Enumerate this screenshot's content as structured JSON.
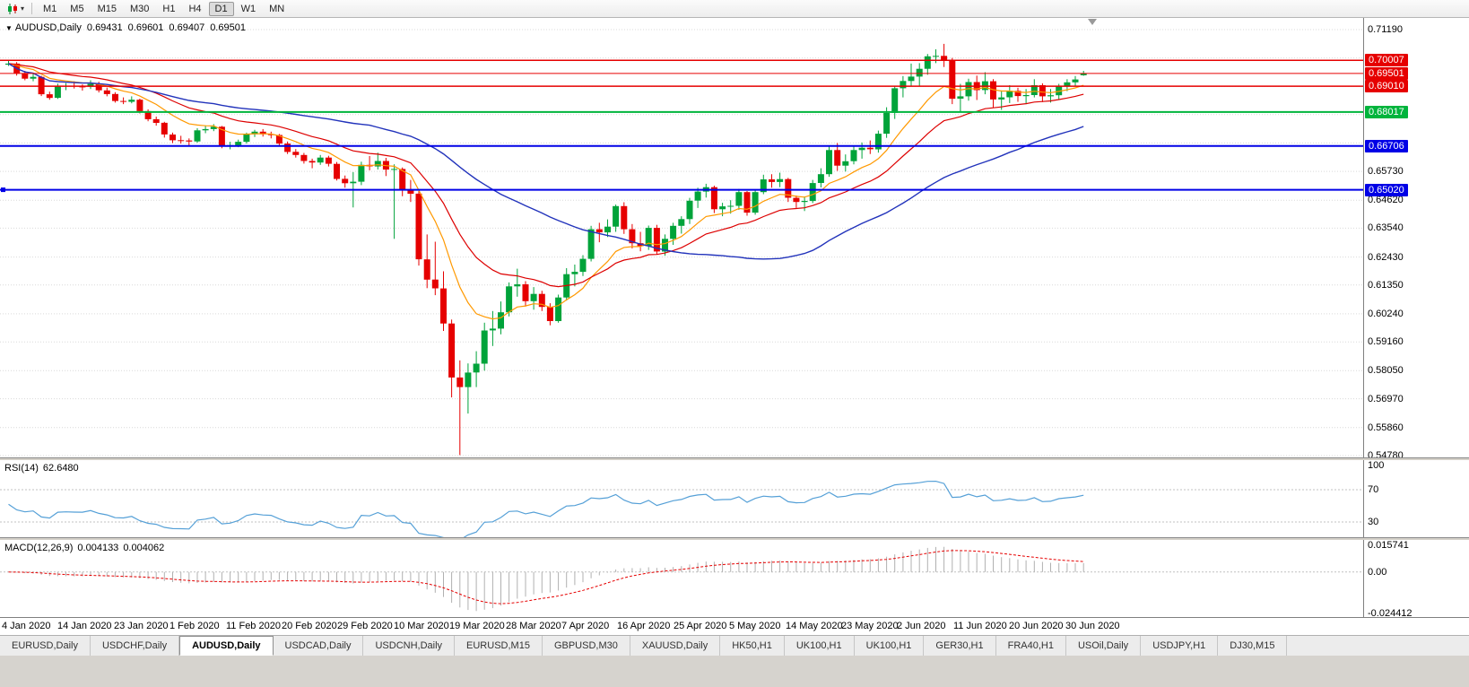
{
  "toolbar": {
    "timeframes": [
      "M1",
      "M5",
      "M15",
      "M30",
      "H1",
      "H4",
      "D1",
      "W1",
      "MN"
    ],
    "active_timeframe": "D1"
  },
  "chart": {
    "type": "candlestick",
    "symbol_period": "AUDUSD,Daily",
    "ohlc": {
      "open": "0.69431",
      "high": "0.69601",
      "low": "0.69407",
      "close": "0.69501"
    },
    "colors": {
      "up": "#00a33a",
      "down": "#e60000",
      "grid": "#d9d9d9",
      "background": "#ffffff"
    },
    "price_axis": {
      "max": 0.7164,
      "min": 0.5471,
      "ticks": [
        "0.71190",
        "0.65730",
        "0.64620",
        "0.63540",
        "0.62430",
        "0.61350",
        "0.60240",
        "0.59160",
        "0.58050",
        "0.56970",
        "0.55860",
        "0.54780"
      ],
      "grid": [
        0.7119,
        0.70098,
        0.69006,
        0.67914,
        0.66822,
        0.6573,
        0.6462,
        0.6354,
        0.6243,
        0.6135,
        0.6024,
        0.5916,
        0.5805,
        0.5697,
        0.5586,
        0.5478
      ]
    },
    "hlines": [
      {
        "value": 0.70007,
        "label": "0.70007",
        "color": "#e60000",
        "width": 1.5,
        "handle": false
      },
      {
        "value": 0.6901,
        "label": "0.69010",
        "color": "#e60000",
        "width": 1.5,
        "handle": false
      },
      {
        "value": 0.68017,
        "label": "0.68017",
        "color": "#00b43c",
        "width": 2,
        "handle": false
      },
      {
        "value": 0.66706,
        "label": "0.66706",
        "color": "#0000e6",
        "width": 2,
        "handle": false
      },
      {
        "value": 0.6502,
        "label": "0.65020",
        "color": "#0000e6",
        "width": 2,
        "handle": true
      }
    ],
    "bid": {
      "value": 0.69501,
      "label": "0.69501",
      "color": "#e60000"
    },
    "moving_averages": [
      {
        "name": "ma-fast",
        "period": 10,
        "method": "ema",
        "color": "#ff9900",
        "width": 1.2
      },
      {
        "name": "ma-mid",
        "period": 21,
        "method": "ema",
        "color": "#dd0000",
        "width": 1.2
      },
      {
        "name": "ma-slow",
        "period": 45,
        "method": "sma",
        "color": "#2233bb",
        "width": 1.4
      }
    ],
    "date_labels": [
      "4 Jan 2020",
      "14 Jan 2020",
      "23 Jan 2020",
      "1 Feb 2020",
      "11 Feb 2020",
      "20 Feb 2020",
      "29 Feb 2020",
      "10 Mar 2020",
      "19 Mar 2020",
      "28 Mar 2020",
      "7 Apr 2020",
      "16 Apr 2020",
      "25 Apr 2020",
      "5 May 2020",
      "14 May 2020",
      "23 May 2020",
      "2 Jun 2020",
      "11 Jun 2020",
      "20 Jun 2020",
      "30 Jun 2020"
    ],
    "candles": [
      [
        0.6984,
        0.7,
        0.6979,
        0.6988
      ],
      [
        0.6988,
        0.6994,
        0.6942,
        0.695
      ],
      [
        0.695,
        0.696,
        0.6924,
        0.693
      ],
      [
        0.693,
        0.6949,
        0.692,
        0.6937
      ],
      [
        0.6937,
        0.6941,
        0.6863,
        0.687
      ],
      [
        0.687,
        0.688,
        0.6849,
        0.6856
      ],
      [
        0.6856,
        0.6911,
        0.6852,
        0.69
      ],
      [
        0.69,
        0.6913,
        0.6886,
        0.6903
      ],
      [
        0.6903,
        0.692,
        0.6892,
        0.69
      ],
      [
        0.69,
        0.6908,
        0.6884,
        0.6899
      ],
      [
        0.6899,
        0.6924,
        0.689,
        0.691
      ],
      [
        0.691,
        0.6918,
        0.6877,
        0.6885
      ],
      [
        0.6885,
        0.6896,
        0.6862,
        0.6871
      ],
      [
        0.6871,
        0.6878,
        0.6838,
        0.6844
      ],
      [
        0.6844,
        0.6858,
        0.6832,
        0.6841
      ],
      [
        0.6841,
        0.6862,
        0.6835,
        0.6849
      ],
      [
        0.6849,
        0.6853,
        0.6796,
        0.6805
      ],
      [
        0.6805,
        0.6812,
        0.6766,
        0.6774
      ],
      [
        0.6774,
        0.6784,
        0.6749,
        0.676
      ],
      [
        0.676,
        0.6764,
        0.6703,
        0.6715
      ],
      [
        0.6715,
        0.6722,
        0.6682,
        0.6693
      ],
      [
        0.6693,
        0.671,
        0.668,
        0.6692
      ],
      [
        0.6692,
        0.67,
        0.667,
        0.6688
      ],
      [
        0.6688,
        0.6739,
        0.6683,
        0.6731
      ],
      [
        0.6731,
        0.675,
        0.672,
        0.6736
      ],
      [
        0.6736,
        0.6755,
        0.6728,
        0.6745
      ],
      [
        0.6745,
        0.6748,
        0.6662,
        0.667
      ],
      [
        0.667,
        0.6687,
        0.6658,
        0.6674
      ],
      [
        0.6674,
        0.6695,
        0.6666,
        0.6687
      ],
      [
        0.6687,
        0.6722,
        0.668,
        0.6716
      ],
      [
        0.6716,
        0.6733,
        0.6705,
        0.6726
      ],
      [
        0.6726,
        0.6736,
        0.6707,
        0.6716
      ],
      [
        0.6716,
        0.6726,
        0.67,
        0.6713
      ],
      [
        0.6713,
        0.6717,
        0.6671,
        0.668
      ],
      [
        0.668,
        0.6688,
        0.664,
        0.6648
      ],
      [
        0.6648,
        0.6659,
        0.6626,
        0.6636
      ],
      [
        0.6636,
        0.6644,
        0.6603,
        0.6613
      ],
      [
        0.6613,
        0.6622,
        0.6585,
        0.6607
      ],
      [
        0.6607,
        0.6636,
        0.6598,
        0.6626
      ],
      [
        0.6626,
        0.6633,
        0.6592,
        0.6602
      ],
      [
        0.6602,
        0.6609,
        0.6538,
        0.6544
      ],
      [
        0.6544,
        0.6557,
        0.651,
        0.6527
      ],
      [
        0.6527,
        0.657,
        0.6434,
        0.6533
      ],
      [
        0.6533,
        0.661,
        0.652,
        0.6598
      ],
      [
        0.6598,
        0.6632,
        0.6577,
        0.6592
      ],
      [
        0.6592,
        0.6645,
        0.658,
        0.6613
      ],
      [
        0.6613,
        0.6625,
        0.6555,
        0.658
      ],
      [
        0.658,
        0.66,
        0.6313,
        0.6582
      ],
      [
        0.6582,
        0.6588,
        0.6477,
        0.6499
      ],
      [
        0.6499,
        0.654,
        0.6455,
        0.6487
      ],
      [
        0.6487,
        0.6497,
        0.621,
        0.6234
      ],
      [
        0.6234,
        0.633,
        0.6123,
        0.6156
      ],
      [
        0.6156,
        0.6302,
        0.6096,
        0.6122
      ],
      [
        0.6122,
        0.6188,
        0.5958,
        0.5987
      ],
      [
        0.5987,
        0.6002,
        0.5702,
        0.5779
      ],
      [
        0.5779,
        0.5845,
        0.548,
        0.5742
      ],
      [
        0.5742,
        0.5833,
        0.564,
        0.5798
      ],
      [
        0.5798,
        0.588,
        0.5742,
        0.5832
      ],
      [
        0.5832,
        0.599,
        0.5805,
        0.596
      ],
      [
        0.596,
        0.6035,
        0.59,
        0.5967
      ],
      [
        0.5967,
        0.6072,
        0.5945,
        0.603
      ],
      [
        0.603,
        0.6145,
        0.6014,
        0.613
      ],
      [
        0.613,
        0.6198,
        0.609,
        0.6138
      ],
      [
        0.6138,
        0.615,
        0.6052,
        0.6073
      ],
      [
        0.6073,
        0.6127,
        0.604,
        0.6101
      ],
      [
        0.6101,
        0.6113,
        0.6035,
        0.6051
      ],
      [
        0.6051,
        0.6065,
        0.598,
        0.5996
      ],
      [
        0.5996,
        0.6098,
        0.599,
        0.6087
      ],
      [
        0.6087,
        0.62,
        0.6075,
        0.6177
      ],
      [
        0.6177,
        0.6214,
        0.613,
        0.6186
      ],
      [
        0.6186,
        0.625,
        0.617,
        0.6236
      ],
      [
        0.6236,
        0.6363,
        0.6226,
        0.635
      ],
      [
        0.635,
        0.6375,
        0.63,
        0.6338
      ],
      [
        0.6338,
        0.6388,
        0.632,
        0.636
      ],
      [
        0.636,
        0.6445,
        0.634,
        0.6439
      ],
      [
        0.6439,
        0.6454,
        0.6332,
        0.635
      ],
      [
        0.635,
        0.637,
        0.6276,
        0.6296
      ],
      [
        0.6296,
        0.634,
        0.6265,
        0.6285
      ],
      [
        0.6285,
        0.6364,
        0.627,
        0.6355
      ],
      [
        0.6355,
        0.6367,
        0.6253,
        0.6264
      ],
      [
        0.6264,
        0.633,
        0.6248,
        0.6313
      ],
      [
        0.6313,
        0.6375,
        0.629,
        0.6363
      ],
      [
        0.6363,
        0.64,
        0.6333,
        0.6389
      ],
      [
        0.6389,
        0.6471,
        0.637,
        0.646
      ],
      [
        0.646,
        0.651,
        0.6432,
        0.6495
      ],
      [
        0.6495,
        0.6525,
        0.6472,
        0.6512
      ],
      [
        0.6512,
        0.6518,
        0.6412,
        0.6427
      ],
      [
        0.6427,
        0.6452,
        0.64,
        0.6438
      ],
      [
        0.6438,
        0.6462,
        0.641,
        0.644
      ],
      [
        0.644,
        0.6505,
        0.6425,
        0.6493
      ],
      [
        0.6493,
        0.6497,
        0.6402,
        0.6414
      ],
      [
        0.6414,
        0.65,
        0.6406,
        0.6493
      ],
      [
        0.6493,
        0.656,
        0.6485,
        0.6542
      ],
      [
        0.6542,
        0.6562,
        0.651,
        0.6532
      ],
      [
        0.6532,
        0.6568,
        0.6512,
        0.6543
      ],
      [
        0.6543,
        0.6548,
        0.6455,
        0.6471
      ],
      [
        0.6471,
        0.648,
        0.6432,
        0.6455
      ],
      [
        0.6455,
        0.6476,
        0.642,
        0.6459
      ],
      [
        0.6459,
        0.654,
        0.6451,
        0.6528
      ],
      [
        0.6528,
        0.6585,
        0.6511,
        0.6562
      ],
      [
        0.6562,
        0.6672,
        0.6552,
        0.6655
      ],
      [
        0.6655,
        0.6682,
        0.6575,
        0.6595
      ],
      [
        0.6595,
        0.6638,
        0.6572,
        0.6612
      ],
      [
        0.6612,
        0.6672,
        0.66,
        0.6655
      ],
      [
        0.6655,
        0.6684,
        0.6622,
        0.6664
      ],
      [
        0.6664,
        0.6692,
        0.664,
        0.6658
      ],
      [
        0.6658,
        0.673,
        0.6645,
        0.6718
      ],
      [
        0.6718,
        0.682,
        0.6702,
        0.6798
      ],
      [
        0.6798,
        0.69,
        0.6775,
        0.6893
      ],
      [
        0.6893,
        0.694,
        0.6858,
        0.6921
      ],
      [
        0.6921,
        0.6988,
        0.69,
        0.6938
      ],
      [
        0.6938,
        0.699,
        0.6902,
        0.6968
      ],
      [
        0.6968,
        0.7025,
        0.6945,
        0.7016
      ],
      [
        0.7016,
        0.7043,
        0.699,
        0.7018
      ],
      [
        0.7018,
        0.7064,
        0.6975,
        0.6999
      ],
      [
        0.6999,
        0.701,
        0.6832,
        0.6853
      ],
      [
        0.6853,
        0.691,
        0.68,
        0.6862
      ],
      [
        0.6862,
        0.693,
        0.6845,
        0.6917
      ],
      [
        0.6917,
        0.6942,
        0.6848,
        0.6886
      ],
      [
        0.6886,
        0.6955,
        0.687,
        0.692
      ],
      [
        0.692,
        0.6928,
        0.6818,
        0.685
      ],
      [
        0.685,
        0.6885,
        0.681,
        0.6858
      ],
      [
        0.6858,
        0.6905,
        0.6836,
        0.6883
      ],
      [
        0.6883,
        0.6895,
        0.6841,
        0.6863
      ],
      [
        0.6863,
        0.689,
        0.6832,
        0.6867
      ],
      [
        0.6867,
        0.6928,
        0.6858,
        0.6905
      ],
      [
        0.6905,
        0.6912,
        0.684,
        0.6862
      ],
      [
        0.6862,
        0.689,
        0.6838,
        0.6866
      ],
      [
        0.6866,
        0.691,
        0.685,
        0.6903
      ],
      [
        0.6903,
        0.6928,
        0.6882,
        0.6916
      ],
      [
        0.6916,
        0.694,
        0.69,
        0.6927
      ],
      [
        0.6943,
        0.696,
        0.6941,
        0.695
      ]
    ]
  },
  "rsi": {
    "name": "RSI(14)",
    "value": "62.6480",
    "period": 14,
    "color": "#55a0d7",
    "levels": [
      {
        "label": "100",
        "value": 100,
        "line": false
      },
      {
        "label": "70",
        "value": 70,
        "line": true
      },
      {
        "label": "30",
        "value": 30,
        "line": true
      }
    ]
  },
  "macd": {
    "name": "MACD(12,26,9)",
    "macd_value": "0.004133",
    "signal_value": "0.004062",
    "fast": 12,
    "slow": 26,
    "signal": 9,
    "histogram_color": "#b0b0b0",
    "signal_color": "#e60000",
    "axis": {
      "max": 0.015741,
      "min": -0.024412,
      "labels": [
        {
          "label": "0.015741",
          "value": 0.015741
        },
        {
          "label": "0.00",
          "value": 0
        },
        {
          "label": "-0.024412",
          "value": -0.024412
        }
      ]
    }
  },
  "tabs": {
    "items": [
      "EURUSD,Daily",
      "USDCHF,Daily",
      "AUDUSD,Daily",
      "USDCAD,Daily",
      "USDCNH,Daily",
      "EURUSD,M15",
      "GBPUSD,M30",
      "XAUUSD,Daily",
      "HK50,H1",
      "UK100,H1",
      "UK100,H1",
      "GER30,H1",
      "FRA40,H1",
      "USOil,Daily",
      "USDJPY,H1",
      "DJ30,M15"
    ],
    "active": "AUDUSD,Daily"
  }
}
